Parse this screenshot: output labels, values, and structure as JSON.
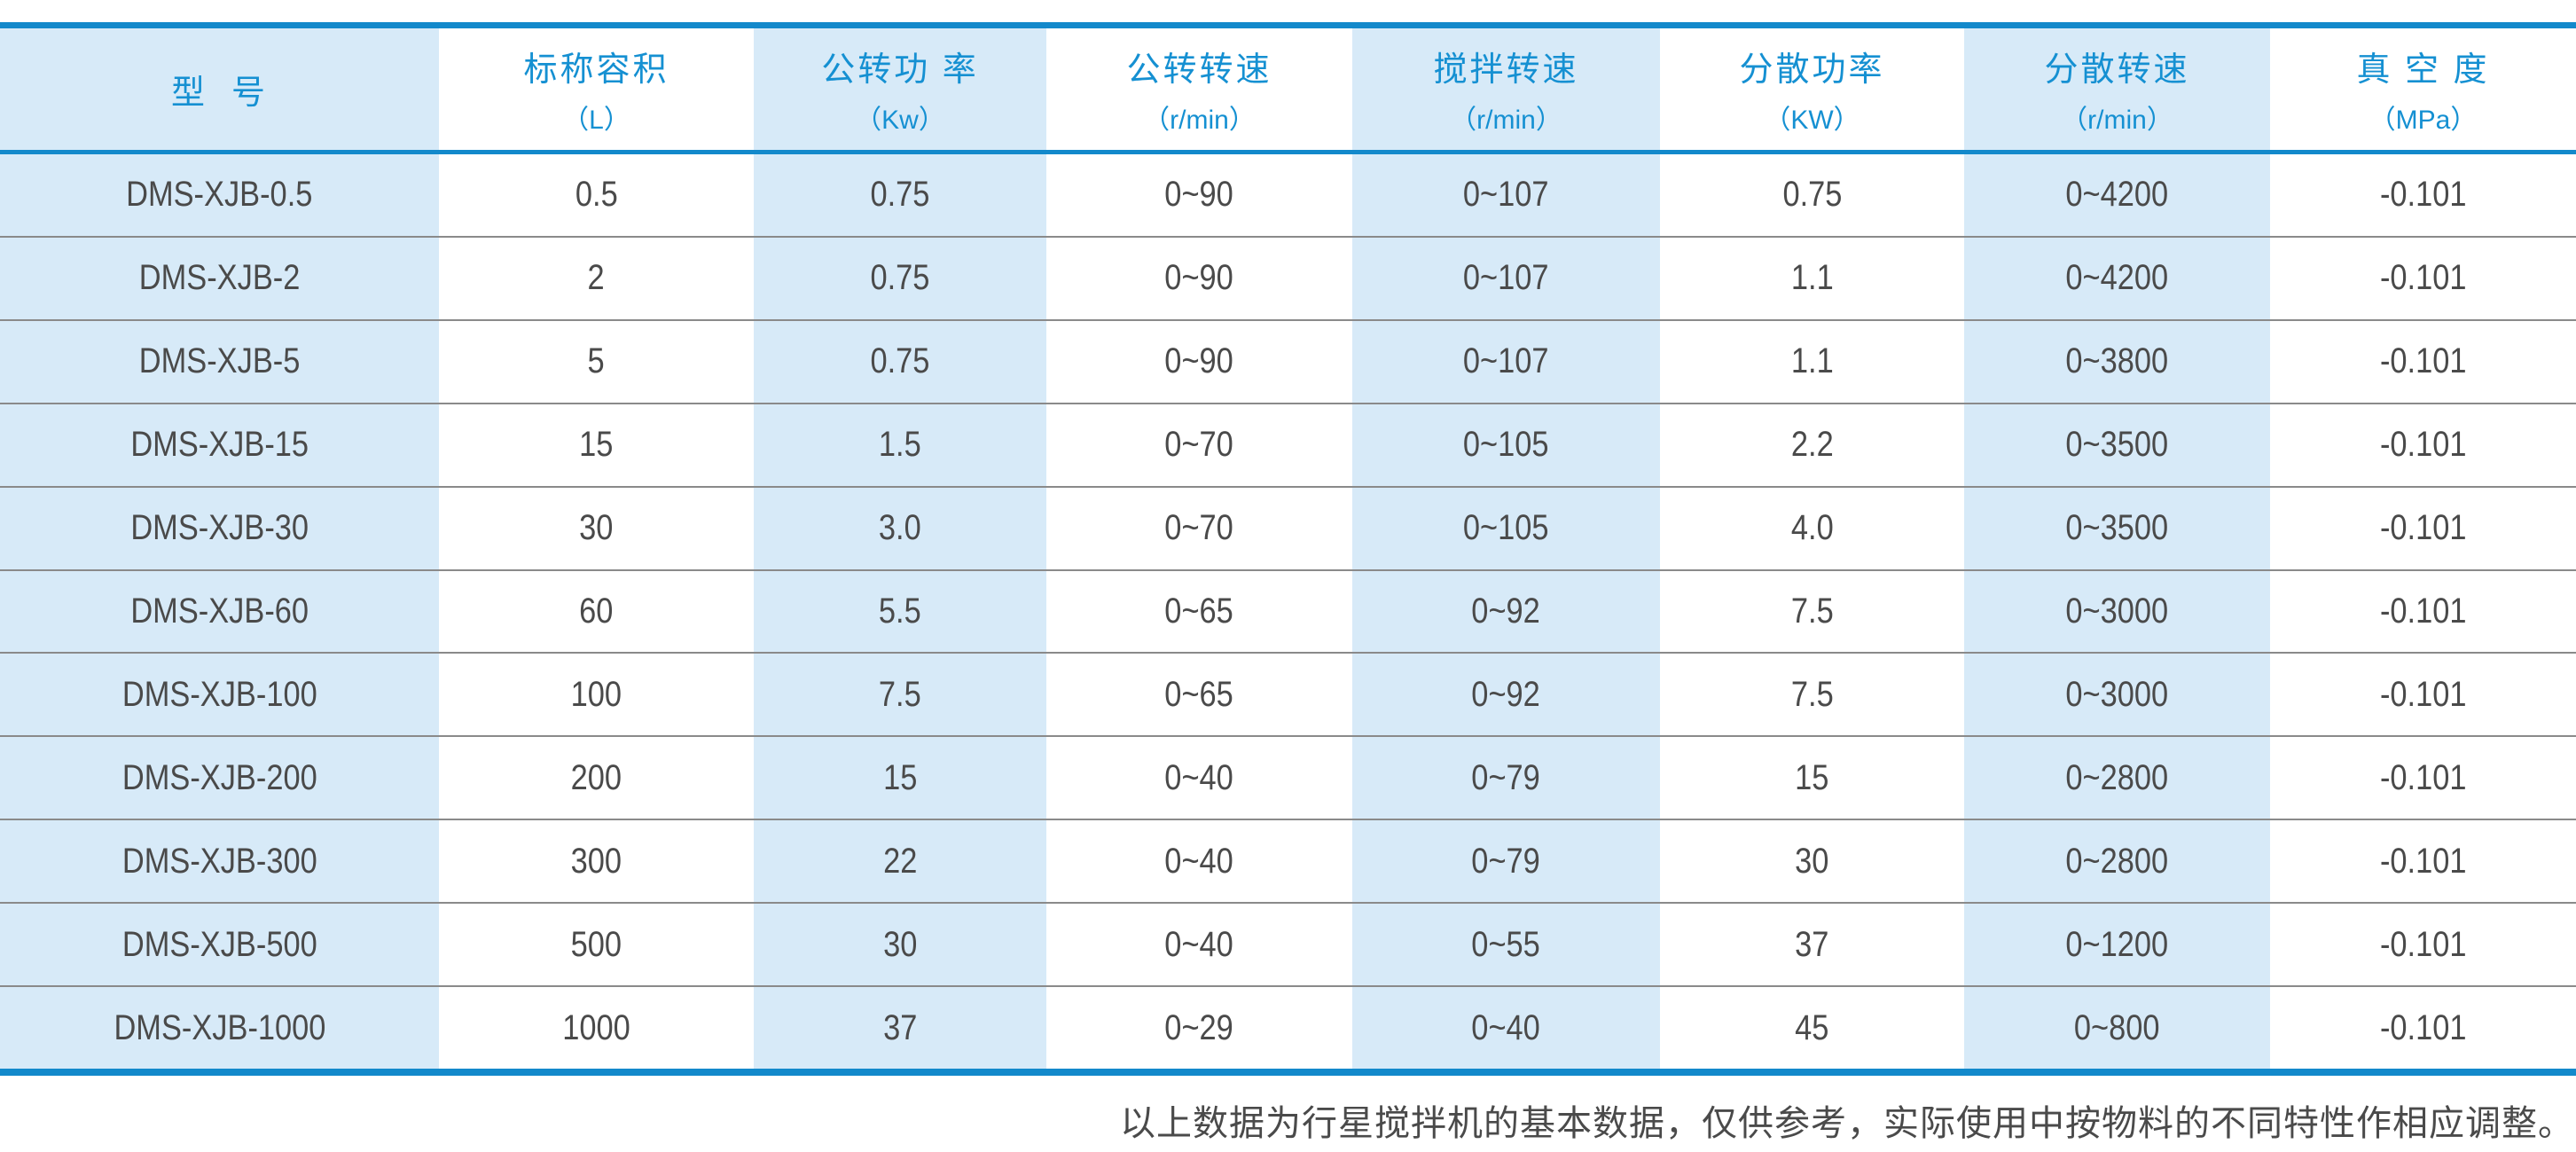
{
  "table": {
    "columns": [
      {
        "label": "型  号",
        "unit": ""
      },
      {
        "label": "标称容积",
        "unit": "（L）"
      },
      {
        "label": "公转功 率",
        "unit": "（Kw）"
      },
      {
        "label": "公转转速",
        "unit": "（r/min）"
      },
      {
        "label": "搅拌转速",
        "unit": "（r/min）"
      },
      {
        "label": "分散功率",
        "unit": "（KW）"
      },
      {
        "label": "分散转速",
        "unit": "（r/min）"
      },
      {
        "label": "真 空 度",
        "unit": "（MPa）"
      }
    ],
    "rows": [
      [
        "DMS-XJB-0.5",
        "0.5",
        "0.75",
        "0~90",
        "0~107",
        "0.75",
        "0~4200",
        "-0.101"
      ],
      [
        "DMS-XJB-2",
        "2",
        "0.75",
        "0~90",
        "0~107",
        "1.1",
        "0~4200",
        "-0.101"
      ],
      [
        "DMS-XJB-5",
        "5",
        "0.75",
        "0~90",
        "0~107",
        "1.1",
        "0~3800",
        "-0.101"
      ],
      [
        "DMS-XJB-15",
        "15",
        "1.5",
        "0~70",
        "0~105",
        "2.2",
        "0~3500",
        "-0.101"
      ],
      [
        "DMS-XJB-30",
        "30",
        "3.0",
        "0~70",
        "0~105",
        "4.0",
        "0~3500",
        "-0.101"
      ],
      [
        "DMS-XJB-60",
        "60",
        "5.5",
        "0~65",
        "0~92",
        "7.5",
        "0~3000",
        "-0.101"
      ],
      [
        "DMS-XJB-100",
        "100",
        "7.5",
        "0~65",
        "0~92",
        "7.5",
        "0~3000",
        "-0.101"
      ],
      [
        "DMS-XJB-200",
        "200",
        "15",
        "0~40",
        "0~79",
        "15",
        "0~2800",
        "-0.101"
      ],
      [
        "DMS-XJB-300",
        "300",
        "22",
        "0~40",
        "0~79",
        "30",
        "0~2800",
        "-0.101"
      ],
      [
        "DMS-XJB-500",
        "500",
        "30",
        "0~40",
        "0~55",
        "37",
        "0~1200",
        "-0.101"
      ],
      [
        "DMS-XJB-1000",
        "1000",
        "37",
        "0~29",
        "0~40",
        "45",
        "0~800",
        "-0.101"
      ]
    ]
  },
  "footer": {
    "note": "以上数据为行星搅拌机的基本数据，仅供参考，实际使用中按物料的不同特性作相应调整。"
  },
  "colors": {
    "accent_blue": "#1389cb",
    "header_text_blue": "#1590d2",
    "column_alt_bg": "#d7eaf8",
    "row_line_gray": "#8a8a8a",
    "data_text_gray": "#4a4a4a"
  }
}
